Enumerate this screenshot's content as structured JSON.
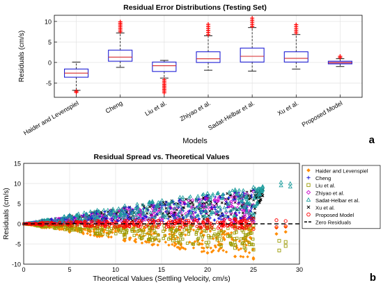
{
  "chart_data": [
    {
      "type": "box",
      "title": "Residual Error Distributions (Testing Set)",
      "xlabel": "Models",
      "ylabel": "Residuals (cm/s)",
      "ylim": [
        -8.5,
        11.5
      ],
      "yticks": [
        -5,
        0,
        5,
        10
      ],
      "grid": true,
      "panel_label": "a",
      "colors": {
        "box": "#1f1fd6",
        "median": "#d62728",
        "whisker": "#000000",
        "outlier": "#ff0000"
      },
      "categories": [
        "Haider and Levenspiel",
        "Cheng",
        "Liu et al.",
        "Zhiyao et al.",
        "Sadat-Helbar et al.",
        "Xu et al.",
        "Proposed Model"
      ],
      "boxes": [
        {
          "min": -6.8,
          "q1": -3.6,
          "median": -2.6,
          "q3": -1.6,
          "max": 0.1,
          "outliers_low": [
            -7.0,
            -7.3
          ],
          "outliers_high": []
        },
        {
          "min": -1.2,
          "q1": 0.3,
          "median": 1.3,
          "q3": 3.0,
          "max": 7.2,
          "outliers_low": [],
          "outliers_high": [
            7.5,
            7.9,
            8.3,
            8.7,
            9.1,
            9.5,
            9.9
          ]
        },
        {
          "min": -3.8,
          "q1": -2.2,
          "median": -0.8,
          "q3": 0.1,
          "max": 0.5,
          "outliers_low": [
            -4.2,
            -4.6,
            -5.0,
            -5.4,
            -5.8,
            -6.2,
            -6.6,
            -7.0,
            -7.4
          ],
          "outliers_high": []
        },
        {
          "min": -1.9,
          "q1": 0.0,
          "median": 0.9,
          "q3": 2.6,
          "max": 6.5,
          "outliers_low": [],
          "outliers_high": [
            6.8,
            7.3,
            7.8,
            8.3,
            8.8,
            9.3
          ]
        },
        {
          "min": -2.1,
          "q1": 0.1,
          "median": 1.5,
          "q3": 3.5,
          "max": 8.5,
          "outliers_low": [],
          "outliers_high": [
            8.8,
            9.3,
            9.8,
            10.3,
            10.8
          ]
        },
        {
          "min": -1.6,
          "q1": 0.1,
          "median": 1.0,
          "q3": 2.6,
          "max": 6.8,
          "outliers_low": [],
          "outliers_high": [
            7.2,
            7.7,
            8.2,
            8.7,
            9.2
          ]
        },
        {
          "min": -1.0,
          "q1": -0.35,
          "median": -0.05,
          "q3": 0.3,
          "max": 0.9,
          "outliers_low": [],
          "outliers_high": [
            1.2,
            1.5
          ]
        }
      ]
    },
    {
      "type": "scatter",
      "title": "Residual Spread vs. Theoretical Values",
      "xlabel": "Theoretical Values (Settling Velocity, cm/s)",
      "ylabel": "Residuals (cm/s)",
      "xlim": [
        0,
        30
      ],
      "ylim": [
        -10,
        15
      ],
      "xticks": [
        0,
        5,
        10,
        15,
        20,
        25,
        30
      ],
      "yticks": [
        -10,
        -5,
        0,
        5,
        10,
        15
      ],
      "grid": true,
      "legend_position": "outside-right",
      "panel_label": "b",
      "series": [
        {
          "name": "Haider and Levenspiel",
          "marker": "diamond",
          "color": "#ff8c00",
          "x": [
            2,
            5,
            8,
            11,
            14,
            17,
            20,
            23,
            25,
            27.5,
            28.5
          ],
          "y_low": [
            -0.9,
            -2.0,
            -3.1,
            -4.2,
            -5.2,
            -6.2,
            -7.2,
            -8.1,
            -8.7,
            -2.5,
            -2.0
          ],
          "y_high": [
            -0.1,
            -0.3,
            -0.4,
            -0.5,
            -0.6,
            -0.7,
            -0.8,
            -0.9,
            -1.0,
            -1.0,
            -0.8
          ]
        },
        {
          "name": "Cheng",
          "marker": "plus",
          "color": "#1f1fd6",
          "x": [
            2,
            5,
            8,
            11,
            14,
            17,
            20,
            23,
            25
          ],
          "y_low": [
            0.0,
            0.2,
            0.3,
            0.4,
            0.5,
            0.6,
            0.7,
            0.8,
            0.9
          ],
          "y_high": [
            0.8,
            2.0,
            3.0,
            4.0,
            5.0,
            6.0,
            7.0,
            7.8,
            8.4
          ]
        },
        {
          "name": "Liu et al.",
          "marker": "square",
          "color": "#9a9a00",
          "x": [
            2,
            5,
            8,
            11,
            14,
            17,
            20,
            23,
            25,
            27.8,
            28.5
          ],
          "y_low": [
            -0.7,
            -1.6,
            -2.5,
            -3.3,
            -4.1,
            -4.8,
            -5.5,
            -6.0,
            -6.4,
            -6.6,
            -5.5
          ],
          "y_high": [
            0.0,
            -0.1,
            -0.1,
            -0.2,
            -0.2,
            -0.3,
            -0.3,
            -0.4,
            -0.4,
            -4.2,
            -4.5
          ]
        },
        {
          "name": "Zhiyao et al.",
          "marker": "diamond-open",
          "color": "#c800c8",
          "x": [
            2,
            5,
            8,
            11,
            14,
            17,
            20,
            23,
            25
          ],
          "y_low": [
            0.0,
            0.1,
            0.2,
            0.2,
            0.3,
            0.3,
            0.4,
            0.4,
            0.5
          ],
          "y_high": [
            0.7,
            1.8,
            2.8,
            3.8,
            4.7,
            5.6,
            6.5,
            7.3,
            8.0
          ]
        },
        {
          "name": "Sadat-Helbar et al.",
          "marker": "triangle",
          "color": "#1f9e9e",
          "x": [
            2,
            5,
            8,
            11,
            14,
            17,
            20,
            23,
            25,
            26,
            28,
            29
          ],
          "y_low": [
            0.1,
            0.4,
            0.7,
            1.0,
            1.2,
            1.4,
            1.6,
            1.8,
            2.0,
            8.5,
            9.5,
            9.2
          ],
          "y_high": [
            0.9,
            2.2,
            3.4,
            4.5,
            5.6,
            6.6,
            7.6,
            8.5,
            9.1,
            9.3,
            10.3,
            10.0
          ]
        },
        {
          "name": "Xu et al.",
          "marker": "x",
          "color": "#000000",
          "x": [
            2,
            5,
            8,
            11,
            14,
            17,
            20,
            23,
            25,
            26
          ],
          "y_low": [
            0.0,
            0.2,
            0.4,
            0.6,
            0.8,
            1.0,
            1.2,
            1.4,
            1.6,
            7.0
          ],
          "y_high": [
            0.8,
            2.0,
            3.1,
            4.1,
            5.1,
            6.1,
            7.0,
            7.9,
            8.5,
            8.4
          ]
        },
        {
          "name": "Proposed Model",
          "marker": "circle-open",
          "color": "#ff0000",
          "x": [
            2,
            5,
            8,
            11,
            14,
            17,
            20,
            23,
            25,
            27.5,
            28.5
          ],
          "y_low": [
            -0.3,
            -0.5,
            -0.7,
            -0.8,
            -0.9,
            -1.0,
            -1.1,
            -1.2,
            -1.3,
            -0.8,
            -0.6
          ],
          "y_high": [
            0.3,
            0.5,
            0.7,
            0.8,
            0.9,
            1.0,
            1.1,
            1.2,
            1.3,
            0.9,
            0.7
          ]
        }
      ],
      "reference_line": {
        "name": "Zero Residuals",
        "y": 0,
        "style": "dashed",
        "color": "#000000"
      }
    }
  ]
}
